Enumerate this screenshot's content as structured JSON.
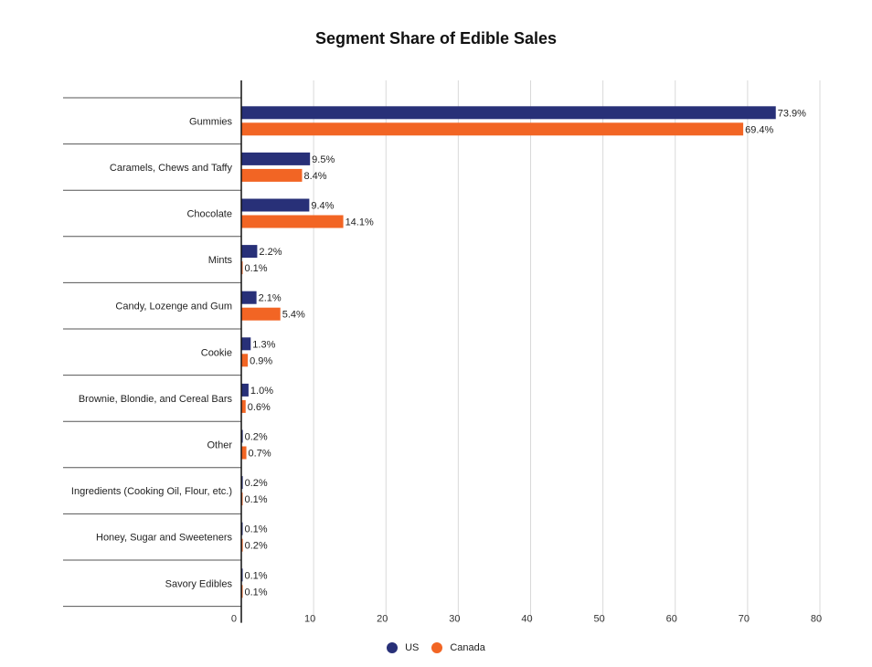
{
  "chart_data": {
    "type": "bar",
    "orientation": "horizontal",
    "title": "Segment Share of Edible Sales",
    "xlabel": "",
    "ylabel": "",
    "categories": [
      "Gummies",
      "Caramels, Chews and Taffy",
      "Chocolate",
      "Mints",
      "Candy, Lozenge and Gum",
      "Cookie",
      "Brownie, Blondie, and Cereal Bars",
      "Other",
      "Ingredients (Cooking Oil, Flour, etc.)",
      "Honey, Sugar and Sweeteners",
      "Savory Edibles"
    ],
    "series": [
      {
        "name": "US",
        "color": "#283078",
        "values": [
          73.9,
          9.5,
          9.4,
          2.2,
          2.1,
          1.3,
          1.0,
          0.2,
          0.2,
          0.1,
          0.1
        ],
        "labels": [
          "73.9%",
          "9.5%",
          "9.4%",
          "2.2%",
          "2.1%",
          "1.3%",
          "1.0%",
          "0.2%",
          "0.2%",
          "0.1%",
          "0.1%"
        ]
      },
      {
        "name": "Canada",
        "color": "#F26524",
        "values": [
          69.4,
          8.4,
          14.1,
          0.1,
          5.4,
          0.9,
          0.6,
          0.7,
          0.1,
          0.2,
          0.1
        ],
        "labels": [
          "69.4%",
          "8.4%",
          "14.1%",
          "0.1%",
          "5.4%",
          "0.9%",
          "0.6%",
          "0.7%",
          "0.1%",
          "0.2%",
          "0.1%"
        ]
      }
    ],
    "xlim": [
      0,
      80
    ],
    "xticks": [
      "0",
      "10",
      "20",
      "30",
      "40",
      "50",
      "60",
      "70",
      "80"
    ],
    "grid": true,
    "legend_position": "bottom"
  }
}
